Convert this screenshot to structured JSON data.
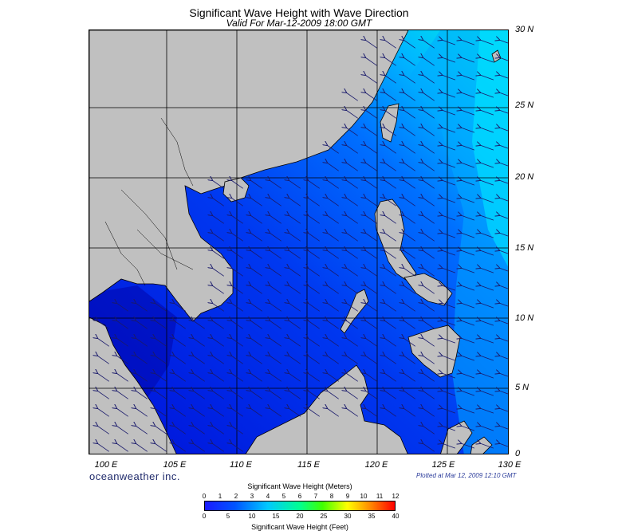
{
  "title": "Significant Wave Height with Wave Direction",
  "subtitle": "Valid For Mar-12-2009 18:00 GMT",
  "brand": "oceanweather inc.",
  "plotted": "Plotted at Mar 12, 2009 12:10 GMT",
  "lat_labels": [
    "30 N",
    "25 N",
    "20 N",
    "15 N",
    "10 N",
    "5 N",
    "0"
  ],
  "lon_labels": [
    "100 E",
    "105 E",
    "110 E",
    "115 E",
    "120 E",
    "125 E",
    "130 E"
  ],
  "scale": {
    "meters_title": "Significant Wave Height (Meters)",
    "feet_title": "Significant Wave Height (Feet)",
    "meters_ticks": [
      "0",
      "1",
      "2",
      "3",
      "4",
      "5",
      "6",
      "7",
      "8",
      "9",
      "10",
      "11",
      "12"
    ],
    "feet_ticks": [
      "0",
      "5",
      "10",
      "15",
      "20",
      "25",
      "30",
      "35",
      "40"
    ]
  },
  "colors": {
    "land": "#c0c0c0",
    "sea_low": "#0000e6",
    "sea_mid": "#0064ff",
    "sea_high": "#00e6ff",
    "arrow": "#1a1a6b"
  }
}
